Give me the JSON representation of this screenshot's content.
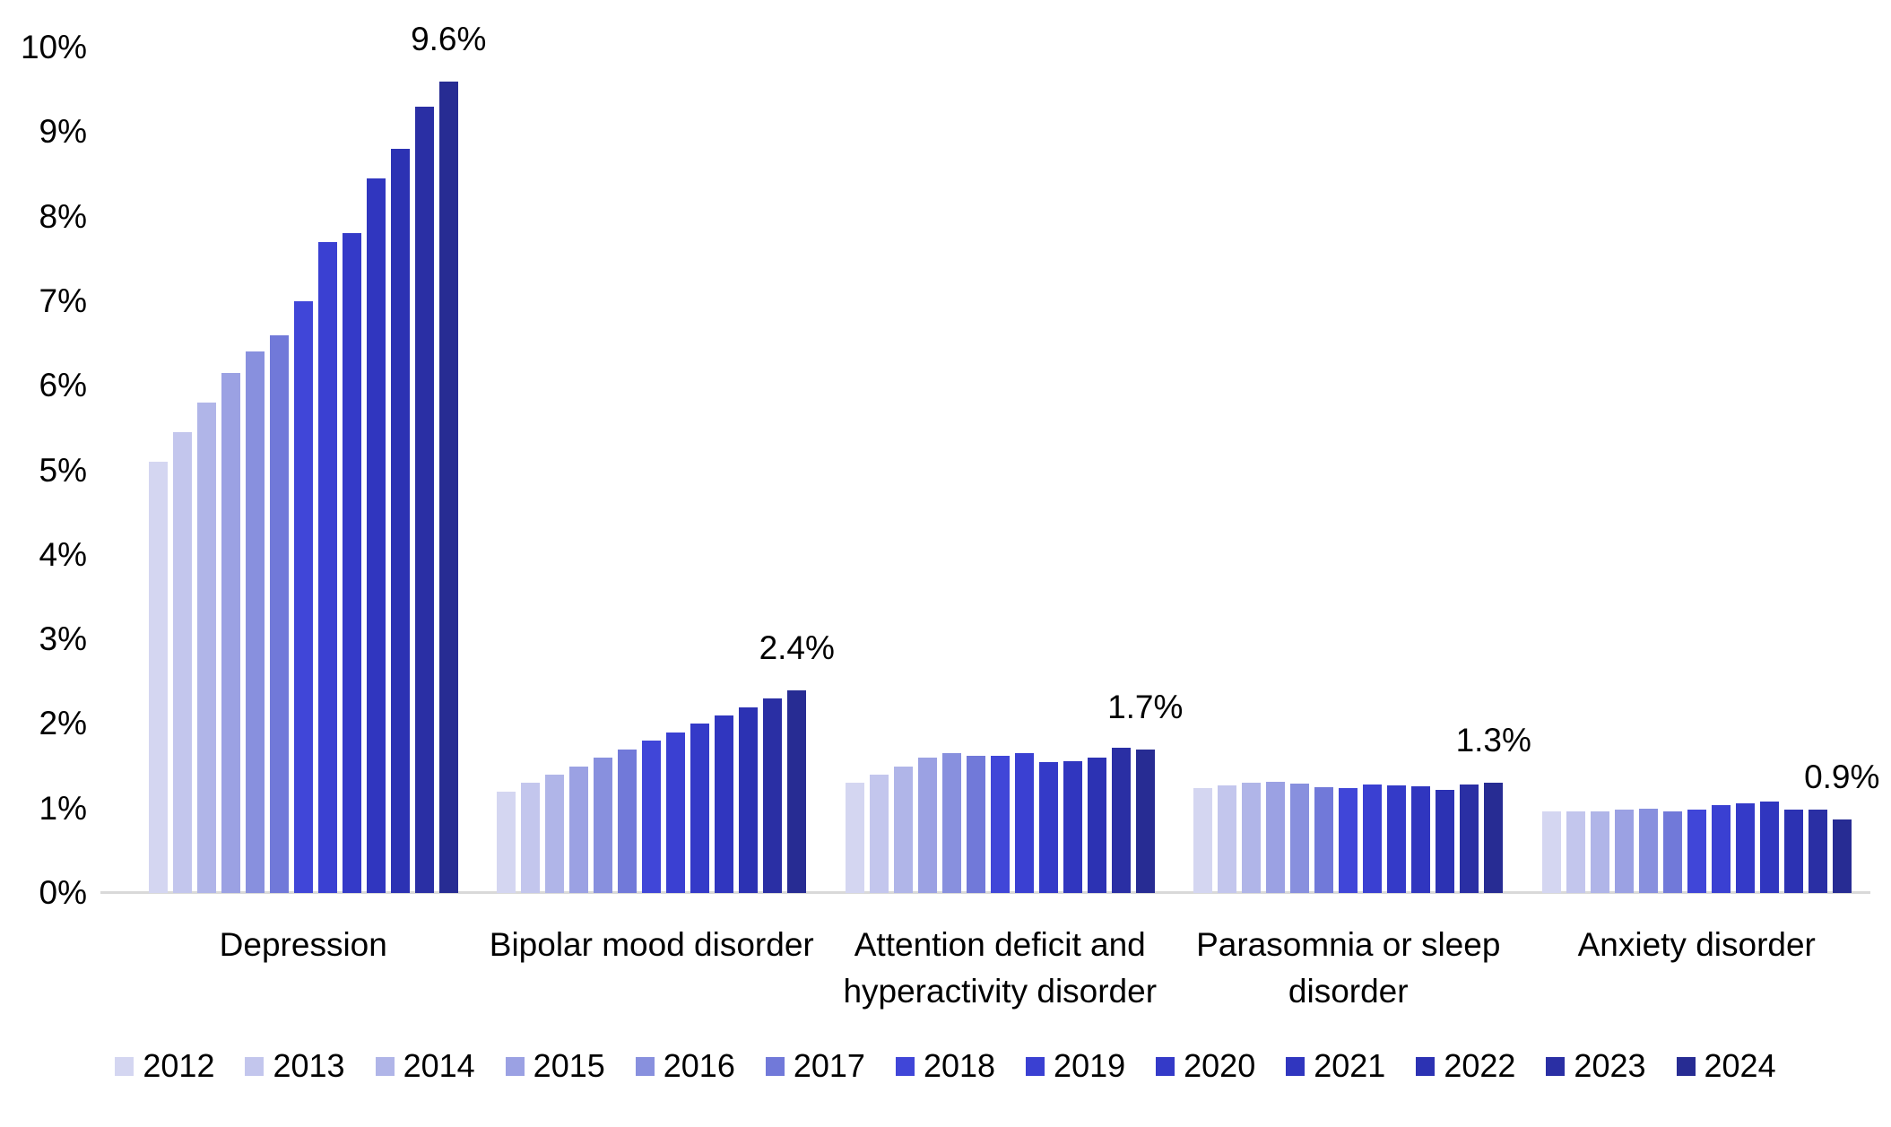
{
  "chart_data": {
    "type": "bar",
    "title": "",
    "xlabel": "",
    "ylabel": "",
    "ylim": [
      0,
      10
    ],
    "grid": false,
    "legend_position": "bottom",
    "yticks": [
      "0%",
      "1%",
      "2%",
      "3%",
      "4%",
      "5%",
      "6%",
      "7%",
      "8%",
      "9%",
      "10%"
    ],
    "categories": [
      [
        "Depression"
      ],
      [
        "Bipolar mood disorder"
      ],
      [
        "Attention deficit and",
        "hyperactivity disorder"
      ],
      [
        "Parasomnia or sleep",
        "disorder"
      ],
      [
        "Anxiety disorder"
      ]
    ],
    "peak_labels": [
      "9.6%",
      "2.4%",
      "1.7%",
      "1.3%",
      "0.9%"
    ],
    "series": [
      {
        "name": "2012",
        "color": "#d4d6f1",
        "values": [
          5.1,
          1.2,
          1.3,
          1.24,
          0.96
        ]
      },
      {
        "name": "2013",
        "color": "#c3c6ed",
        "values": [
          5.45,
          1.3,
          1.4,
          1.27,
          0.96
        ]
      },
      {
        "name": "2014",
        "color": "#b0b5e8",
        "values": [
          5.8,
          1.4,
          1.5,
          1.3,
          0.96
        ]
      },
      {
        "name": "2015",
        "color": "#9ba1e3",
        "values": [
          6.15,
          1.5,
          1.6,
          1.32,
          0.99
        ]
      },
      {
        "name": "2016",
        "color": "#8890de",
        "values": [
          6.4,
          1.6,
          1.65,
          1.29,
          1.0
        ]
      },
      {
        "name": "2017",
        "color": "#7179d9",
        "values": [
          6.6,
          1.7,
          1.62,
          1.25,
          0.97
        ]
      },
      {
        "name": "2018",
        "color": "#4046d8",
        "values": [
          7.0,
          1.8,
          1.62,
          1.24,
          0.99
        ]
      },
      {
        "name": "2019",
        "color": "#3a40d2",
        "values": [
          7.7,
          1.9,
          1.65,
          1.28,
          1.04
        ]
      },
      {
        "name": "2020",
        "color": "#343ac8",
        "values": [
          7.8,
          2.0,
          1.55,
          1.27,
          1.06
        ]
      },
      {
        "name": "2021",
        "color": "#3036bf",
        "values": [
          8.45,
          2.1,
          1.56,
          1.26,
          1.08
        ]
      },
      {
        "name": "2022",
        "color": "#2c32b3",
        "values": [
          8.8,
          2.2,
          1.6,
          1.22,
          0.99
        ]
      },
      {
        "name": "2023",
        "color": "#2a2fa4",
        "values": [
          9.3,
          2.3,
          1.72,
          1.28,
          0.99
        ]
      },
      {
        "name": "2024",
        "color": "#272c93",
        "values": [
          9.6,
          2.4,
          1.7,
          1.3,
          0.87
        ]
      }
    ]
  }
}
